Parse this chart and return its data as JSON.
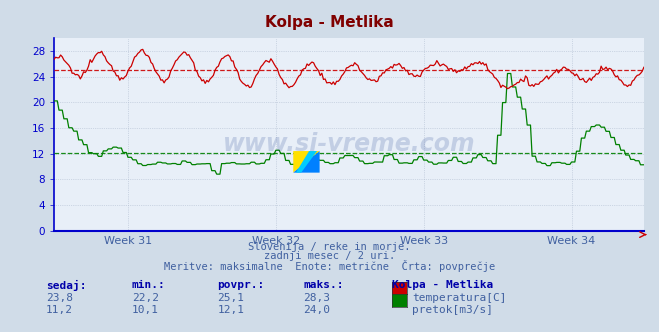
{
  "title": "Kolpa - Metlika",
  "title_color": "#800000",
  "bg_color": "#d0dce8",
  "plot_bg_color": "#e8eff8",
  "axis_color": "#0000cc",
  "grid_color": "#b0bcd0",
  "x_labels": [
    "Week 31",
    "Week 32",
    "Week 33",
    "Week 34"
  ],
  "x_label_color": "#4060a0",
  "temp_color": "#cc0000",
  "flow_color": "#008000",
  "avg_temp": 25.1,
  "avg_flow": 12.1,
  "y_ticks": [
    0,
    4,
    8,
    12,
    16,
    20,
    24,
    28
  ],
  "ylim": [
    0,
    30
  ],
  "footer_lines": [
    "Slovenija / reke in morje.",
    "zadnji mesec / 2 uri.",
    "Meritve: maksimalne  Enote: metrične  Črta: povprečje"
  ],
  "footer_color": "#4060a0",
  "table_header_color": "#0000aa",
  "table_value_color": "#4060a0",
  "watermark_text": "www.si-vreme.com",
  "watermark_color": "#1a3a8a",
  "watermark_alpha": 0.18,
  "n_points": 360,
  "seed": 12345
}
